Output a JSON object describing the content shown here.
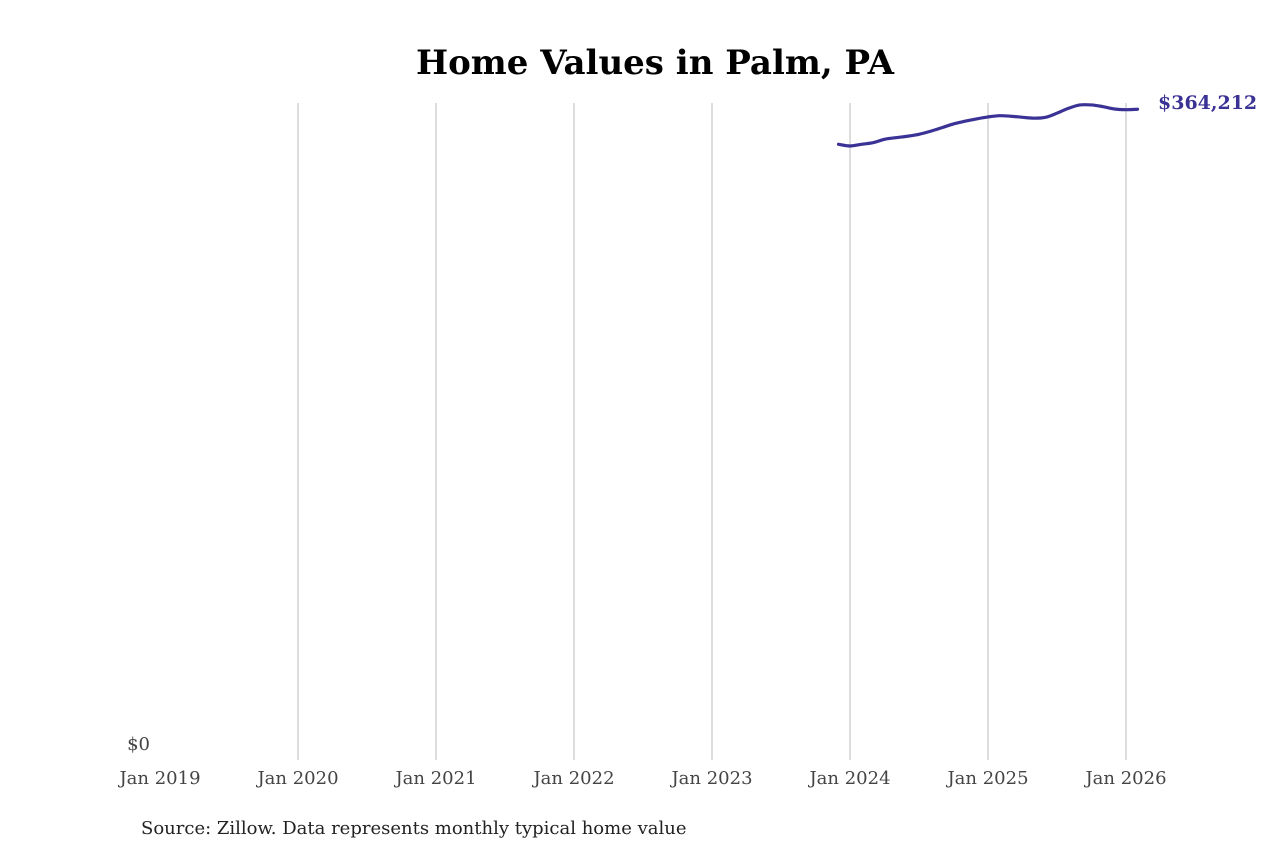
{
  "chart_data": {
    "type": "line",
    "title": "Home Values in Palm, PA",
    "xlabel": "",
    "ylabel": "",
    "source": "Source: Zillow. Data represents monthly typical home value",
    "x_ticks": [
      "Jan 2019",
      "Jan 2020",
      "Jan 2021",
      "Jan 2022",
      "Jan 2023",
      "Jan 2024",
      "Jan 2025",
      "Jan 2026"
    ],
    "y_ticks": [
      "$0"
    ],
    "xlim": [
      "2019-01",
      "2026-02"
    ],
    "ylim": [
      0,
      367700
    ],
    "grid": "vertical",
    "line_color": "#3b3296",
    "end_label": "$364,212",
    "series": [
      {
        "name": "Typical home value",
        "x": [
          "2023-12",
          "2024-01",
          "2024-02",
          "2024-03",
          "2024-04",
          "2024-05",
          "2024-06",
          "2024-07",
          "2024-08",
          "2024-09",
          "2024-10",
          "2024-11",
          "2024-12",
          "2025-01",
          "2025-02",
          "2025-03",
          "2025-04",
          "2025-05",
          "2025-06",
          "2025-07",
          "2025-08",
          "2025-09",
          "2025-10",
          "2025-11",
          "2025-12",
          "2026-01",
          "2026-02"
        ],
        "values": [
          344600,
          343650,
          344600,
          345500,
          347400,
          348300,
          349100,
          350200,
          351900,
          353900,
          356000,
          357500,
          358800,
          359900,
          360600,
          360300,
          359700,
          359200,
          359700,
          362000,
          364750,
          366600,
          366600,
          365650,
          364350,
          363970,
          364212
        ]
      }
    ]
  }
}
